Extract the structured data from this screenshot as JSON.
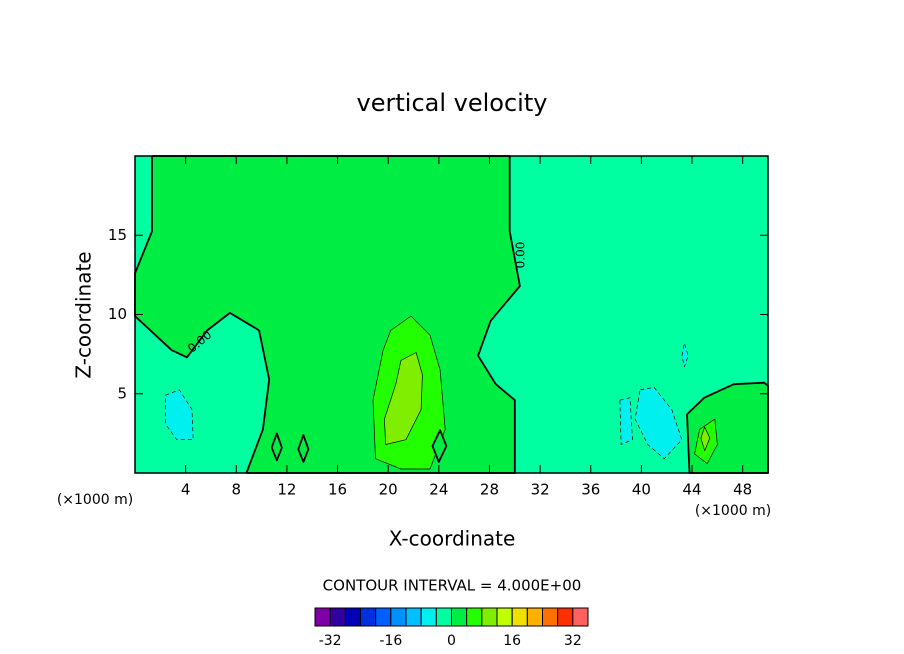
{
  "chart_data": {
    "type": "contour",
    "title": "vertical velocity",
    "x_label": "X-coordinate",
    "y_label": "Z-coordinate",
    "x_unit": "(×1000 m)",
    "xlim": [
      0,
      50
    ],
    "xticks": [
      4,
      8,
      12,
      16,
      20,
      24,
      28,
      32,
      36,
      40,
      44,
      48
    ],
    "ylim": [
      0,
      20
    ],
    "yticks": [
      5,
      10,
      15
    ],
    "contour_interval": "CONTOUR INTERVAL = 4.000E+00",
    "contour_label": "0.00",
    "background_level": -4,
    "regions": [
      {
        "level": 0,
        "points": [
          [
            1.34,
            20
          ],
          [
            29.6,
            20
          ],
          [
            29.6,
            15.25
          ],
          [
            30.4,
            11.8
          ],
          [
            28.1,
            9.6
          ],
          [
            27.1,
            7.4
          ],
          [
            28.5,
            5.6
          ],
          [
            30,
            4.6
          ],
          [
            30,
            0
          ],
          [
            8.8,
            0
          ],
          [
            10.1,
            2.75
          ],
          [
            10.6,
            5.9
          ],
          [
            9.8,
            9
          ],
          [
            7.5,
            10.1
          ],
          [
            5.7,
            9
          ],
          [
            4.1,
            7.3
          ],
          [
            2.9,
            7.75
          ],
          [
            0,
            9.9
          ],
          [
            0,
            12.6
          ],
          [
            1.34,
            15.25
          ]
        ]
      },
      {
        "level": 4,
        "points": [
          [
            20.2,
            9
          ],
          [
            21.8,
            9.9
          ],
          [
            23.3,
            8.7
          ],
          [
            24.1,
            6.5
          ],
          [
            24.5,
            2.75
          ],
          [
            23.3,
            0.25
          ],
          [
            21,
            0.25
          ],
          [
            19,
            0.9
          ],
          [
            18.8,
            4.6
          ],
          [
            19.6,
            7.75
          ]
        ]
      },
      {
        "level": 8,
        "points": [
          [
            21,
            7.1
          ],
          [
            22.2,
            7.6
          ],
          [
            22.7,
            6.2
          ],
          [
            22.6,
            4
          ],
          [
            21.4,
            2.1
          ],
          [
            19.8,
            1.8
          ],
          [
            19.7,
            3.4
          ],
          [
            20.6,
            5.6
          ]
        ]
      },
      {
        "level": 0,
        "points": [
          [
            10.8,
            1.6
          ],
          [
            11.2,
            2.5
          ],
          [
            11.6,
            1.6
          ],
          [
            11.2,
            0.8
          ]
        ]
      },
      {
        "level": 0,
        "points": [
          [
            12.9,
            1.5
          ],
          [
            13.3,
            2.4
          ],
          [
            13.7,
            1.5
          ],
          [
            13.3,
            0.7
          ]
        ]
      },
      {
        "level": 0,
        "points": [
          [
            23.5,
            1.7
          ],
          [
            24.1,
            2.7
          ],
          [
            24.6,
            1.7
          ],
          [
            24,
            0.7
          ]
        ]
      },
      {
        "level": 0,
        "points": [
          [
            43.8,
            0
          ],
          [
            43.6,
            3.7
          ],
          [
            44.97,
            4.75
          ],
          [
            47.3,
            5.6
          ],
          [
            49.7,
            5.7
          ],
          [
            50,
            5.5
          ],
          [
            50,
            0
          ]
        ]
      },
      {
        "level": 4,
        "points": [
          [
            44.2,
            1.2
          ],
          [
            44.6,
            2.75
          ],
          [
            45.8,
            3.4
          ],
          [
            46,
            1.8
          ],
          [
            45.2,
            0.6
          ]
        ]
      },
      {
        "level": 8,
        "points": [
          [
            44.7,
            2.2
          ],
          [
            45,
            2.9
          ],
          [
            45.4,
            2.2
          ],
          [
            45,
            1.4
          ]
        ]
      },
      {
        "level": -8,
        "points": [
          [
            2.4,
            4.9
          ],
          [
            3.5,
            5.25
          ],
          [
            4.5,
            4
          ],
          [
            4.6,
            2.1
          ],
          [
            3.3,
            2.1
          ],
          [
            2.4,
            3.1
          ]
        ]
      },
      {
        "level": -8,
        "points": [
          [
            39.9,
            5.25
          ],
          [
            41,
            5.4
          ],
          [
            42.4,
            4
          ],
          [
            43.2,
            2.1
          ],
          [
            41.8,
            0.9
          ],
          [
            40.5,
            1.8
          ],
          [
            39.5,
            3.4
          ]
        ]
      },
      {
        "level": -8,
        "points": [
          [
            38.3,
            4.6
          ],
          [
            39.1,
            4.75
          ],
          [
            39.3,
            2.1
          ],
          [
            38.4,
            1.8
          ]
        ]
      },
      {
        "level": -8,
        "points": [
          [
            43.2,
            7.4
          ],
          [
            43.4,
            8.2
          ],
          [
            43.7,
            7.4
          ],
          [
            43.4,
            6.7
          ]
        ]
      }
    ],
    "colorbar": {
      "bins": [
        -36,
        -32,
        -28,
        -24,
        -20,
        -16,
        -12,
        -8,
        -4,
        0,
        4,
        8,
        12,
        16,
        20,
        24,
        28,
        32,
        36
      ],
      "colors": [
        "#8000a8",
        "#3000a0",
        "#0000b8",
        "#0030e0",
        "#0060ff",
        "#0090ff",
        "#00c0ff",
        "#00f0f0",
        "#00ffa0",
        "#00ee44",
        "#22ff00",
        "#80ee00",
        "#c0ff00",
        "#f0e000",
        "#ffb000",
        "#ff7000",
        "#ff3000",
        "#ff6060",
        "#ff9898"
      ],
      "ticks": [
        -32,
        -16,
        0,
        16,
        32
      ]
    }
  }
}
